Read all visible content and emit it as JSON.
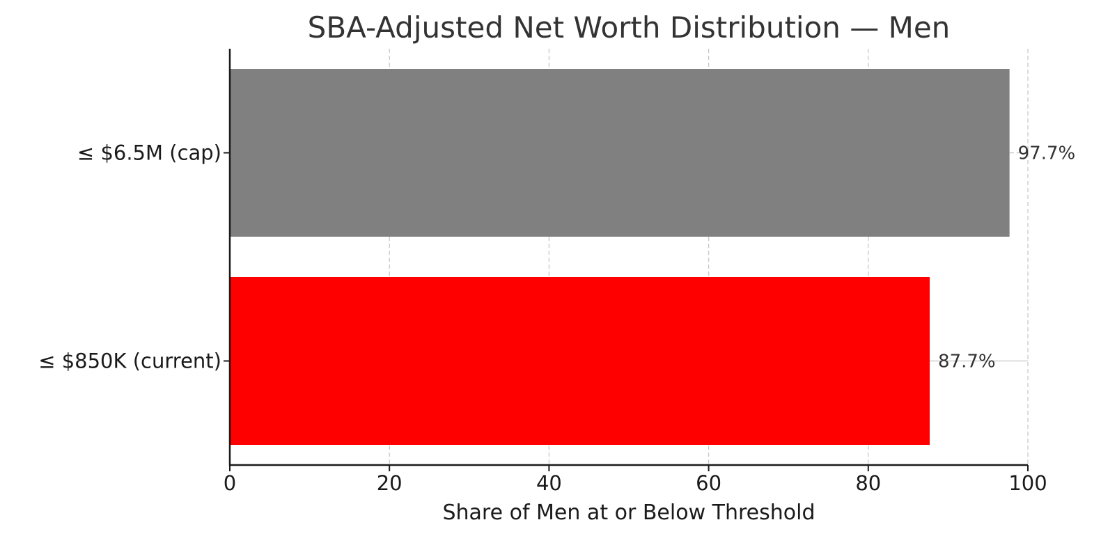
{
  "chart_data": {
    "type": "bar",
    "orientation": "horizontal",
    "title": "SBA-Adjusted Net Worth Distribution — Men",
    "xlabel": "Share of Men at or Below Threshold",
    "ylabel": "",
    "xlim": [
      0,
      100
    ],
    "xticks": [
      0,
      20,
      40,
      60,
      80,
      100
    ],
    "xtick_labels": [
      "0",
      "20",
      "40",
      "60",
      "80",
      "100"
    ],
    "grid": true,
    "categories": [
      "≤ $850K (current)",
      "≤ $6.5M (cap)"
    ],
    "values": [
      87.7,
      97.7
    ],
    "data_labels": [
      "87.7%",
      "97.7%"
    ],
    "colors": [
      "#ff0000",
      "#808080"
    ]
  }
}
